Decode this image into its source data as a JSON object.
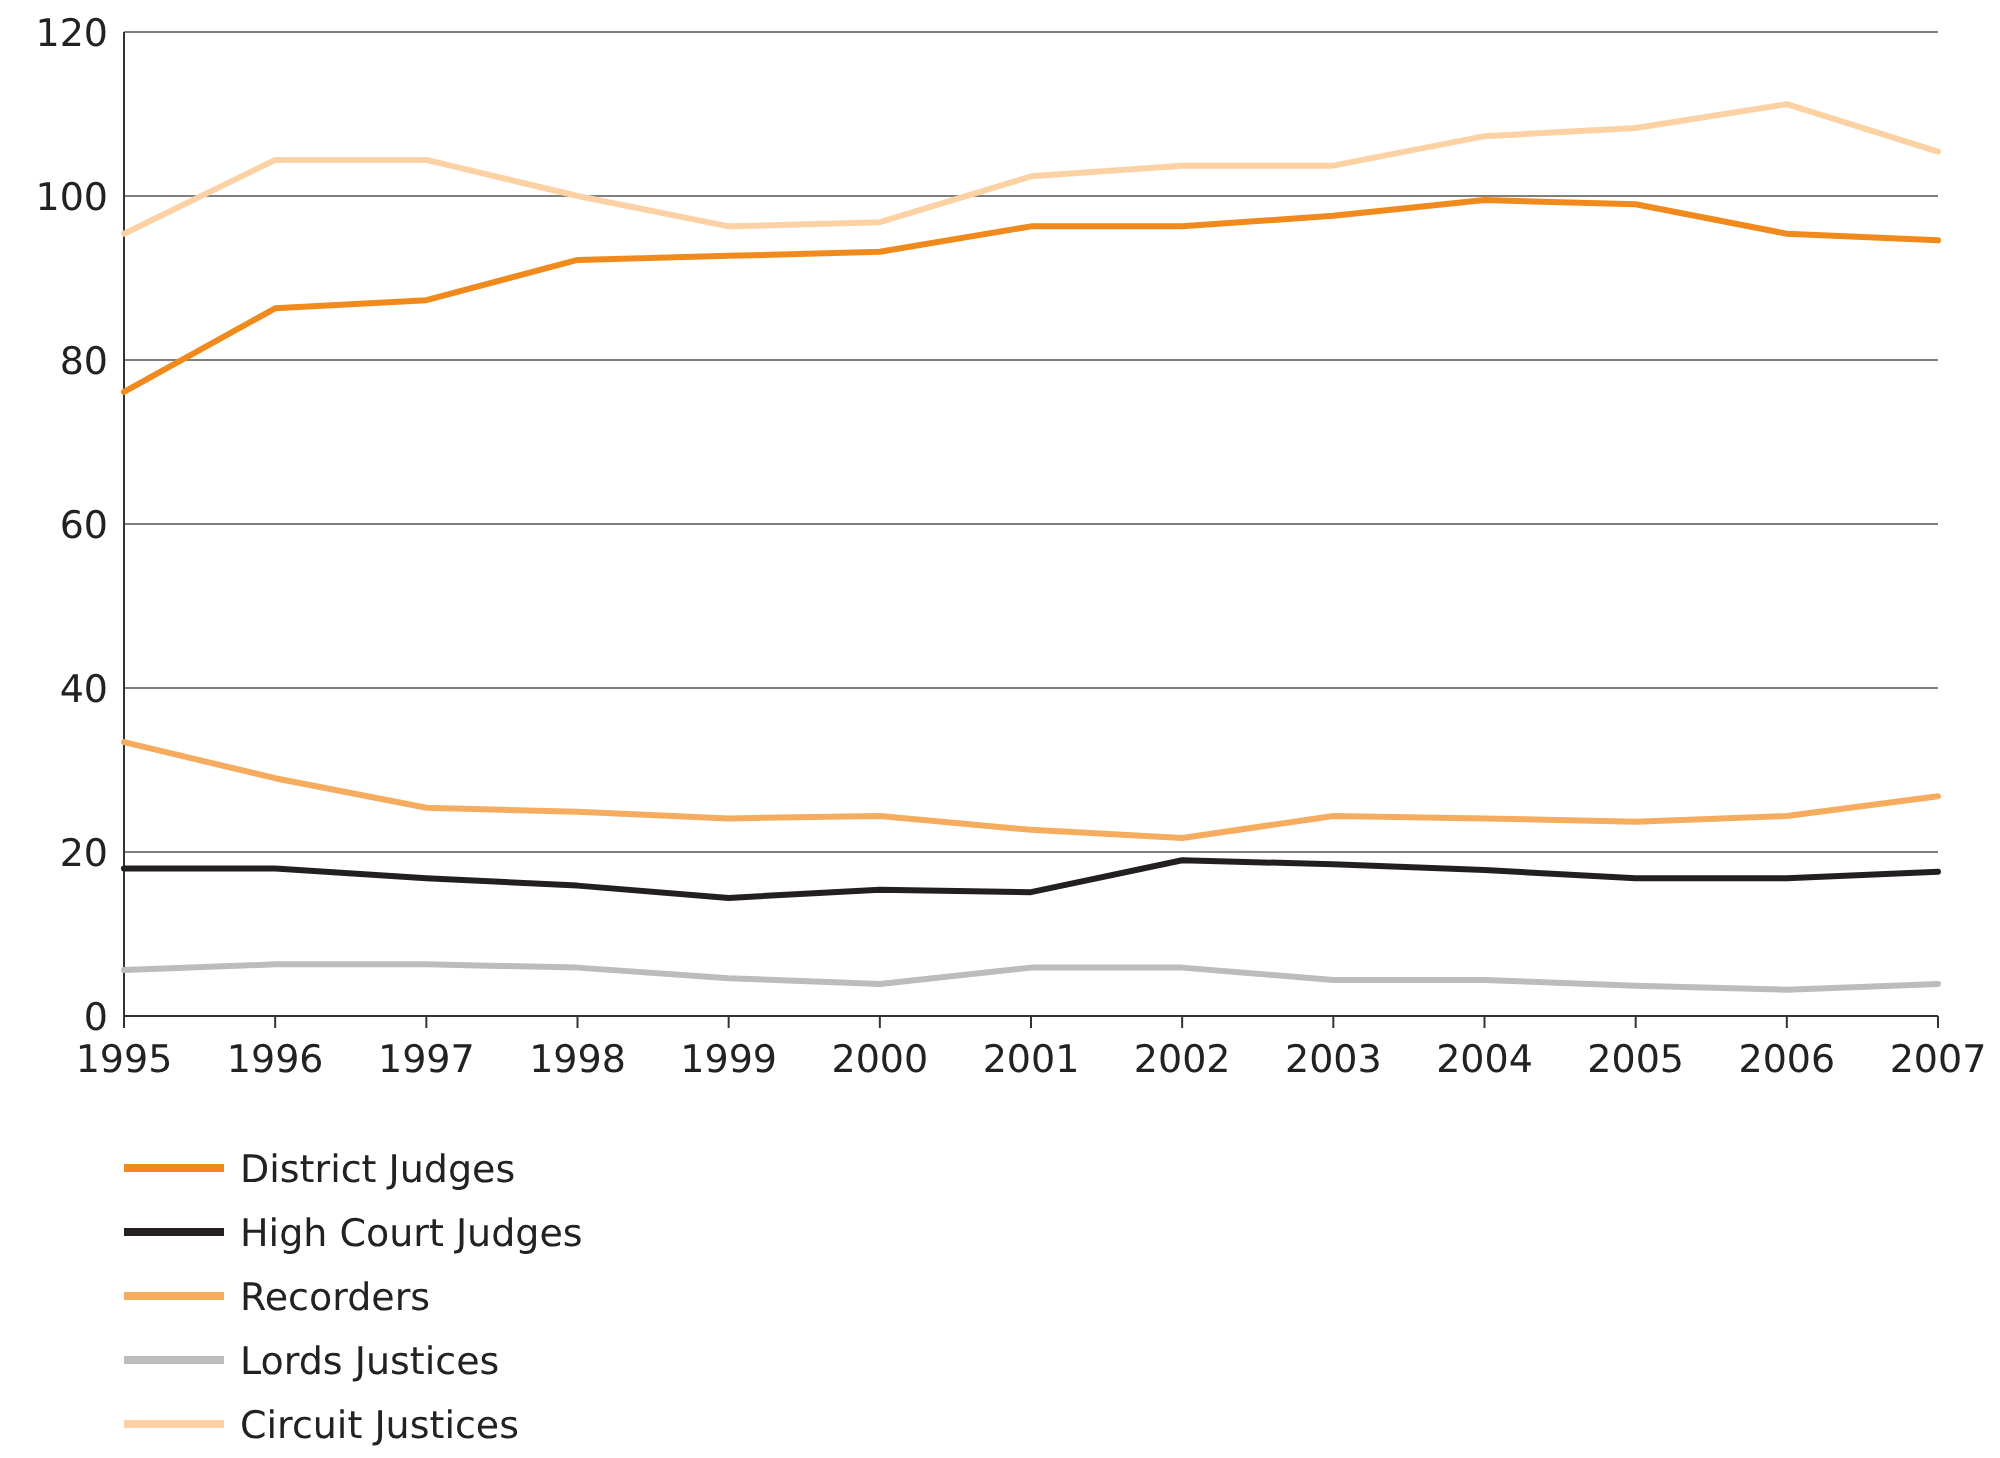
{
  "chart_data": {
    "type": "line",
    "x": [
      1995,
      1996,
      1997,
      1998,
      1999,
      2000,
      2001,
      2002,
      2003,
      2004,
      2005,
      2006,
      2007
    ],
    "xlim": [
      1995,
      2007
    ],
    "xticks": [
      1995,
      1996,
      1997,
      1998,
      1999,
      2000,
      2001,
      2002,
      2003,
      2004,
      2005,
      2006,
      2007
    ],
    "ylim": [
      0,
      120
    ],
    "yticks": [
      0,
      20,
      40,
      60,
      80,
      100,
      120
    ],
    "grid": "y",
    "legend": "bottom left",
    "series": [
      {
        "name": "District Judges",
        "color": "#f08a1c",
        "values": [
          76.1,
          86.3,
          87.3,
          92.2,
          92.7,
          93.2,
          96.3,
          96.3,
          97.6,
          99.5,
          99.0,
          95.4,
          94.6
        ]
      },
      {
        "name": "High Court Judges",
        "color": "#231f20",
        "values": [
          18,
          18,
          16.8,
          15.9,
          14.4,
          15.4,
          15.1,
          19,
          18.5,
          17.8,
          16.8,
          16.8,
          17.6
        ]
      },
      {
        "name": "Recorders",
        "color": "#f6ac5e",
        "values": [
          33.4,
          29,
          25.4,
          24.9,
          24.1,
          24.4,
          22.7,
          21.7,
          24.4,
          24.1,
          23.7,
          24.4,
          26.8
        ]
      },
      {
        "name": "Lords Justices",
        "color": "#bcbcbc",
        "values": [
          5.6,
          6.3,
          6.3,
          5.9,
          4.6,
          3.9,
          5.9,
          5.9,
          4.4,
          4.4,
          3.7,
          3.2,
          3.9
        ]
      },
      {
        "name": "Circuit Justices",
        "color": "#fcd2a4",
        "values": [
          95.4,
          104.4,
          104.4,
          100,
          96.3,
          96.8,
          102.4,
          103.7,
          103.7,
          107.3,
          108.3,
          111.2,
          105.4
        ]
      }
    ]
  }
}
